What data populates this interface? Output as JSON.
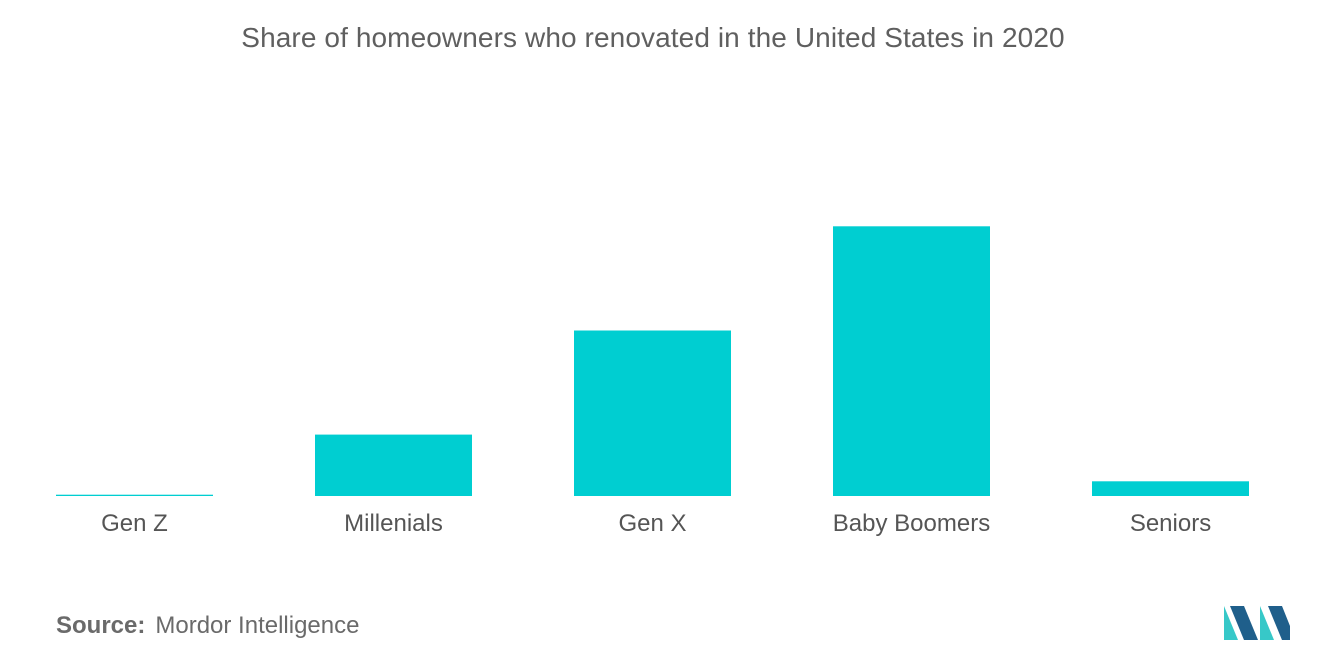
{
  "chart_data": {
    "type": "bar",
    "title": "Share of homeowners who renovated in the United States in 2020",
    "categories": [
      "Gen Z",
      "Millenials",
      "Gen X",
      "Baby Boomers",
      "Seniors"
    ],
    "values": [
      0.5,
      23,
      62,
      101,
      5.5
    ],
    "ylim": [
      0,
      100
    ],
    "xlabel": "",
    "ylabel": "",
    "grid": false,
    "legend": "none",
    "bar_color": "#00ced1"
  },
  "source": {
    "label": "Source:",
    "value": "Mordor Intelligence"
  },
  "colors": {
    "title": "#5f5f5f",
    "tick_label": "#555555",
    "source": "#6a6a6a",
    "logo_dark": "#1f5f8b",
    "logo_light": "#37c8c8"
  },
  "logo": {
    "icon": "mordor-intelligence-logo-icon"
  }
}
